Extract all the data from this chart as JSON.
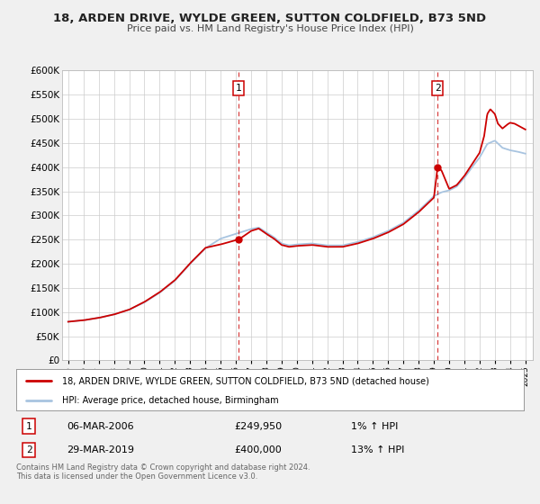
{
  "title": "18, ARDEN DRIVE, WYLDE GREEN, SUTTON COLDFIELD, B73 5ND",
  "subtitle": "Price paid vs. HM Land Registry's House Price Index (HPI)",
  "legend_line1": "18, ARDEN DRIVE, WYLDE GREEN, SUTTON COLDFIELD, B73 5ND (detached house)",
  "legend_line2": "HPI: Average price, detached house, Birmingham",
  "sale1_date": "06-MAR-2006",
  "sale1_price": "£249,950",
  "sale1_hpi": "1% ↑ HPI",
  "sale2_date": "29-MAR-2019",
  "sale2_price": "£400,000",
  "sale2_hpi": "13% ↑ HPI",
  "footer": "Contains HM Land Registry data © Crown copyright and database right 2024.\nThis data is licensed under the Open Government Licence v3.0.",
  "hpi_color": "#a8c4e0",
  "price_color": "#cc0000",
  "vline_color": "#cc0000",
  "grid_color": "#cccccc",
  "bg_color": "#f0f0f0",
  "plot_bg": "#ffffff",
  "ylim": [
    0,
    600000
  ],
  "yticks": [
    0,
    50000,
    100000,
    150000,
    200000,
    250000,
    300000,
    350000,
    400000,
    450000,
    500000,
    550000,
    600000
  ],
  "sale1_x": 2006.18,
  "sale1_y": 249950,
  "sale2_x": 2019.24,
  "sale2_y": 400000,
  "xmin": 1994.6,
  "xmax": 2025.5,
  "xtick_years": [
    1995,
    1996,
    1997,
    1998,
    1999,
    2000,
    2001,
    2002,
    2003,
    2004,
    2005,
    2006,
    2007,
    2008,
    2009,
    2010,
    2011,
    2012,
    2013,
    2014,
    2015,
    2016,
    2017,
    2018,
    2019,
    2020,
    2021,
    2022,
    2023,
    2024,
    2025
  ]
}
